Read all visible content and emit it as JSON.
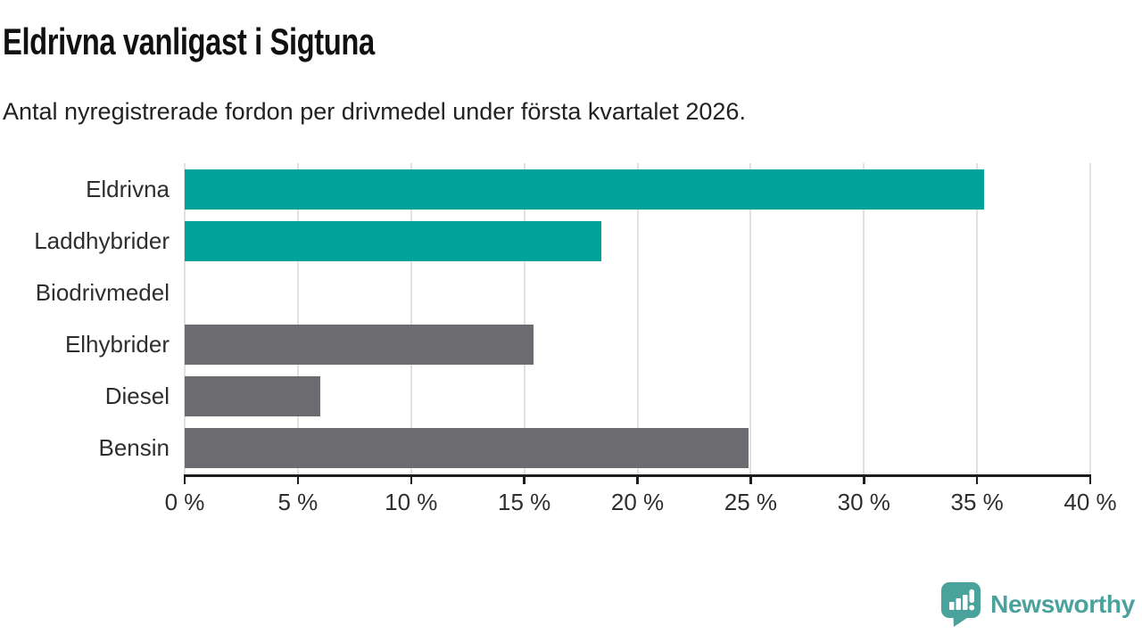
{
  "header": {
    "title": "Eldrivna vanligast i Sigtuna",
    "subtitle": "Antal nyregistrerade fordon per drivmedel under första kvartalet 2026."
  },
  "chart_data": {
    "type": "bar",
    "orientation": "horizontal",
    "title": "Eldrivna vanligast i Sigtuna",
    "subtitle": "Antal nyregistrerade fordon per drivmedel under första kvartalet 2026.",
    "categories": [
      "Eldrivna",
      "Laddhybrider",
      "Biodrivmedel",
      "Elhybrider",
      "Diesel",
      "Bensin"
    ],
    "values": [
      35.3,
      18.4,
      0,
      15.4,
      6,
      24.9
    ],
    "bar_colors": [
      "#00a29a",
      "#00a29a",
      "#6b6b70",
      "#6b6b70",
      "#6b6b70",
      "#6b6b70"
    ],
    "xlabel": "",
    "ylabel": "",
    "xlim": [
      0,
      40
    ],
    "x_ticks": [
      0,
      5,
      10,
      15,
      20,
      25,
      30,
      35,
      40
    ],
    "x_tick_labels": [
      "0 %",
      "5 %",
      "10 %",
      "15 %",
      "20 %",
      "25 %",
      "30 %",
      "35 %",
      "40 %"
    ],
    "grid": true,
    "legend": "none"
  },
  "footer": {
    "brand": "Newsworthy"
  },
  "colors": {
    "accent_teal": "#00a29a",
    "bar_gray": "#6b6b70",
    "gridline": "#e1e1e1",
    "axis": "#1d1d1d",
    "brand_teal": "#4aa29c",
    "background": "#ffffff"
  }
}
